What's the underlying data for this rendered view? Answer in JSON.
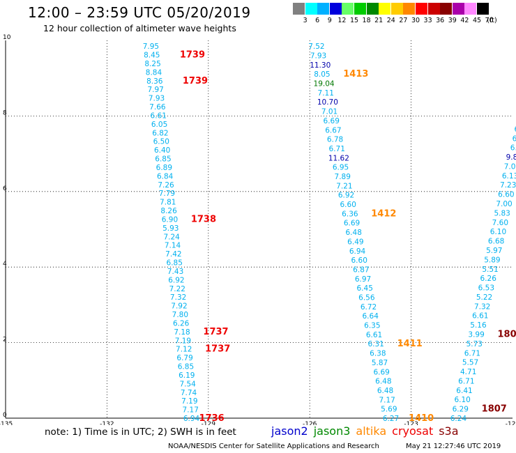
{
  "header": {
    "title": "12:00 – 23:59 UTC 05/20/2019",
    "subtitle": "12 hour collection of altimeter wave heights"
  },
  "legend": {
    "unit": "(ft)",
    "items": [
      {
        "label": "3",
        "color": "#808080"
      },
      {
        "label": "6",
        "color": "#00ffff"
      },
      {
        "label": "9",
        "color": "#00b0ff"
      },
      {
        "label": "12",
        "color": "#0000dd"
      },
      {
        "label": "15",
        "color": "#66ff66"
      },
      {
        "label": "18",
        "color": "#00cc00"
      },
      {
        "label": "21",
        "color": "#008800"
      },
      {
        "label": "24",
        "color": "#ffff00"
      },
      {
        "label": "27",
        "color": "#ffcc00"
      },
      {
        "label": "30",
        "color": "#ff8800"
      },
      {
        "label": "33",
        "color": "#ff0000"
      },
      {
        "label": "36",
        "color": "#cc0000"
      },
      {
        "label": "39",
        "color": "#880000"
      },
      {
        "label": "42",
        "color": "#aa00aa"
      },
      {
        "label": "45",
        "color": "#ff88ff"
      },
      {
        "label": "70",
        "color": "#000000"
      }
    ]
  },
  "axes": {
    "x_labels": [
      "-135",
      "-132",
      "-129",
      "-126",
      "-123",
      "-120"
    ],
    "y_labels": [
      "0",
      "2",
      "4",
      "6",
      "8",
      "10"
    ]
  },
  "colors": {
    "light_blue": "#00b0ee",
    "dark_blue": "#0000aa",
    "dark_green": "#007700",
    "orange": "#ff8800",
    "red": "#ee0000",
    "dark_red": "#880000"
  },
  "tracks": [
    {
      "name": "track-a",
      "x_start": -130.7,
      "x_end": -129.5,
      "values": [
        {
          "v": "7.95",
          "c": "light_blue"
        },
        {
          "v": "8.45",
          "c": "light_blue"
        },
        {
          "v": "8.25",
          "c": "light_blue"
        },
        {
          "v": "8.84",
          "c": "light_blue"
        },
        {
          "v": "8.36",
          "c": "light_blue"
        },
        {
          "v": "7.97",
          "c": "light_blue"
        },
        {
          "v": "7.93",
          "c": "light_blue"
        },
        {
          "v": "7.66",
          "c": "light_blue"
        },
        {
          "v": "6.61",
          "c": "light_blue"
        },
        {
          "v": "6.05",
          "c": "light_blue"
        },
        {
          "v": "6.82",
          "c": "light_blue"
        },
        {
          "v": "6.50",
          "c": "light_blue"
        },
        {
          "v": "6.40",
          "c": "light_blue"
        },
        {
          "v": "6.85",
          "c": "light_blue"
        },
        {
          "v": "6.89",
          "c": "light_blue"
        },
        {
          "v": "6.84",
          "c": "light_blue"
        },
        {
          "v": "7.26",
          "c": "light_blue"
        },
        {
          "v": "7.79",
          "c": "light_blue"
        },
        {
          "v": "7.81",
          "c": "light_blue"
        },
        {
          "v": "8.26",
          "c": "light_blue"
        },
        {
          "v": "6.90",
          "c": "light_blue"
        },
        {
          "v": "5.93",
          "c": "light_blue"
        },
        {
          "v": "7.24",
          "c": "light_blue"
        },
        {
          "v": "7.14",
          "c": "light_blue"
        },
        {
          "v": "7.42",
          "c": "light_blue"
        },
        {
          "v": "6.85",
          "c": "light_blue"
        },
        {
          "v": "7.43",
          "c": "light_blue"
        },
        {
          "v": "6.92",
          "c": "light_blue"
        },
        {
          "v": "7.22",
          "c": "light_blue"
        },
        {
          "v": "7.32",
          "c": "light_blue"
        },
        {
          "v": "7.92",
          "c": "light_blue"
        },
        {
          "v": "7.80",
          "c": "light_blue"
        },
        {
          "v": "6.26",
          "c": "light_blue"
        },
        {
          "v": "7.18",
          "c": "light_blue"
        },
        {
          "v": "7.19",
          "c": "light_blue"
        },
        {
          "v": "7.12",
          "c": "light_blue"
        },
        {
          "v": "6.79",
          "c": "light_blue"
        },
        {
          "v": "6.85",
          "c": "light_blue"
        },
        {
          "v": "6.19",
          "c": "light_blue"
        },
        {
          "v": "7.54",
          "c": "light_blue"
        },
        {
          "v": "7.74",
          "c": "light_blue"
        },
        {
          "v": "7.19",
          "c": "light_blue"
        },
        {
          "v": "7.17",
          "c": "light_blue"
        },
        {
          "v": "6.94",
          "c": "light_blue"
        }
      ],
      "time_labels": [
        {
          "t": "1739",
          "i": 1,
          "c": "red",
          "dx": 1.2
        },
        {
          "t": "1739",
          "i": 4,
          "c": "red",
          "dx": 1.2
        },
        {
          "t": "1738",
          "i": 20,
          "c": "red",
          "dx": 1.0
        },
        {
          "t": "1737",
          "i": 33,
          "c": "red",
          "dx": 1.0
        },
        {
          "t": "1737",
          "i": 35,
          "c": "red",
          "dx": 1.0
        },
        {
          "t": "1736",
          "i": 43,
          "c": "red",
          "dx": 0.6
        }
      ]
    },
    {
      "name": "track-b",
      "x_start": -125.8,
      "x_end": -123.6,
      "values": [
        {
          "v": "7.52",
          "c": "light_blue"
        },
        {
          "v": "7.93",
          "c": "light_blue"
        },
        {
          "v": "11.30",
          "c": "dark_blue"
        },
        {
          "v": "8.05",
          "c": "light_blue"
        },
        {
          "v": "19.04",
          "c": "dark_green"
        },
        {
          "v": "7.11",
          "c": "light_blue"
        },
        {
          "v": "10.70",
          "c": "dark_blue"
        },
        {
          "v": "7.01",
          "c": "light_blue"
        },
        {
          "v": "6.69",
          "c": "light_blue"
        },
        {
          "v": "6.67",
          "c": "light_blue"
        },
        {
          "v": "6.78",
          "c": "light_blue"
        },
        {
          "v": "6.71",
          "c": "light_blue"
        },
        {
          "v": "11.62",
          "c": "dark_blue"
        },
        {
          "v": "6.95",
          "c": "light_blue"
        },
        {
          "v": "7.89",
          "c": "light_blue"
        },
        {
          "v": "7.21",
          "c": "light_blue"
        },
        {
          "v": "6.92",
          "c": "light_blue"
        },
        {
          "v": "6.60",
          "c": "light_blue"
        },
        {
          "v": "6.36",
          "c": "light_blue"
        },
        {
          "v": "6.69",
          "c": "light_blue"
        },
        {
          "v": "6.48",
          "c": "light_blue"
        },
        {
          "v": "6.49",
          "c": "light_blue"
        },
        {
          "v": "6.94",
          "c": "light_blue"
        },
        {
          "v": "6.60",
          "c": "light_blue"
        },
        {
          "v": "6.87",
          "c": "light_blue"
        },
        {
          "v": "6.97",
          "c": "light_blue"
        },
        {
          "v": "6.45",
          "c": "light_blue"
        },
        {
          "v": "6.56",
          "c": "light_blue"
        },
        {
          "v": "6.72",
          "c": "light_blue"
        },
        {
          "v": "6.64",
          "c": "light_blue"
        },
        {
          "v": "6.35",
          "c": "light_blue"
        },
        {
          "v": "6.61",
          "c": "light_blue"
        },
        {
          "v": "6.31",
          "c": "light_blue"
        },
        {
          "v": "6.38",
          "c": "light_blue"
        },
        {
          "v": "5.87",
          "c": "light_blue"
        },
        {
          "v": "6.69",
          "c": "light_blue"
        },
        {
          "v": "6.48",
          "c": "light_blue"
        },
        {
          "v": "6.48",
          "c": "light_blue"
        },
        {
          "v": "7.17",
          "c": "light_blue"
        },
        {
          "v": "5.69",
          "c": "light_blue"
        },
        {
          "v": "6.27",
          "c": "light_blue"
        }
      ],
      "time_labels": [
        {
          "t": "1413",
          "i": 3,
          "c": "orange",
          "dx": 1.0
        },
        {
          "t": "1412",
          "i": 18,
          "c": "orange",
          "dx": 1.0
        },
        {
          "t": "1411",
          "i": 32,
          "c": "orange",
          "dx": 1.0
        },
        {
          "t": "1410",
          "i": 40,
          "c": "orange",
          "dx": 0.9
        }
      ]
    },
    {
      "name": "track-c",
      "x_start": -119.6,
      "x_end": -121.6,
      "values": [
        {
          "v": "6",
          "c": "light_blue"
        },
        {
          "v": "11",
          "c": "dark_blue"
        },
        {
          "v": "6.",
          "c": "light_blue"
        },
        {
          "v": "6.3",
          "c": "light_blue"
        },
        {
          "v": "6.9",
          "c": "light_blue"
        },
        {
          "v": "6.9",
          "c": "light_blue"
        },
        {
          "v": "9.83",
          "c": "dark_blue"
        },
        {
          "v": "7.09",
          "c": "light_blue"
        },
        {
          "v": "6.13",
          "c": "light_blue"
        },
        {
          "v": "7.23",
          "c": "light_blue"
        },
        {
          "v": "6.60",
          "c": "light_blue"
        },
        {
          "v": "7.00",
          "c": "light_blue"
        },
        {
          "v": "5.83",
          "c": "light_blue"
        },
        {
          "v": "7.60",
          "c": "light_blue"
        },
        {
          "v": "6.10",
          "c": "light_blue"
        },
        {
          "v": "6.68",
          "c": "light_blue"
        },
        {
          "v": "5.97",
          "c": "light_blue"
        },
        {
          "v": "5.89",
          "c": "light_blue"
        },
        {
          "v": "5.51",
          "c": "light_blue"
        },
        {
          "v": "6.26",
          "c": "light_blue"
        },
        {
          "v": "6.53",
          "c": "light_blue"
        },
        {
          "v": "5.22",
          "c": "light_blue"
        },
        {
          "v": "7.32",
          "c": "light_blue"
        },
        {
          "v": "6.61",
          "c": "light_blue"
        },
        {
          "v": "5.16",
          "c": "light_blue"
        },
        {
          "v": "3.99",
          "c": "light_blue"
        },
        {
          "v": "5.73",
          "c": "light_blue"
        },
        {
          "v": "6.71",
          "c": "light_blue"
        },
        {
          "v": "5.57",
          "c": "light_blue"
        },
        {
          "v": "4.71",
          "c": "light_blue"
        },
        {
          "v": "6.71",
          "c": "light_blue"
        },
        {
          "v": "6.41",
          "c": "light_blue"
        },
        {
          "v": "6.10",
          "c": "light_blue"
        },
        {
          "v": "6.29",
          "c": "light_blue"
        },
        {
          "v": "6.24",
          "c": "light_blue"
        }
      ],
      "first_y": 8.4,
      "time_labels": [
        {
          "t": "1806",
          "i": 25,
          "c": "dark_red",
          "dx": 1.0
        },
        {
          "t": "1807",
          "i": 33,
          "c": "dark_red",
          "dx": 1.0
        }
      ]
    }
  ],
  "footer": {
    "note": "note:  1) Time is in UTC; 2) SWH is in feet",
    "satellites": [
      {
        "name": "jason2",
        "color": "#0000cc"
      },
      {
        "name": "jason3",
        "color": "#008800"
      },
      {
        "name": "altika",
        "color": "#ff8800"
      },
      {
        "name": "cryosat",
        "color": "#ee0000"
      },
      {
        "name": "s3a",
        "color": "#880000"
      }
    ],
    "credit": "NOAA/NESDIS Center for Satellite Applications and Research",
    "timestamp": "May 21 12:27:46 UTC 2019"
  }
}
